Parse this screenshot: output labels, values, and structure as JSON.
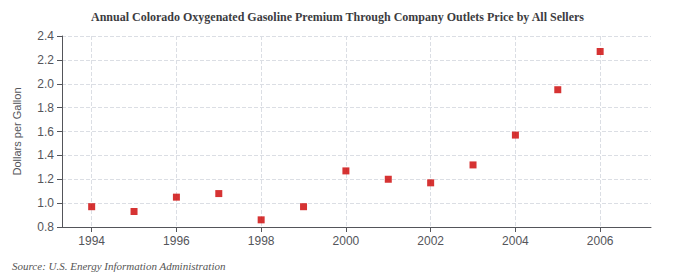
{
  "chart_data": {
    "type": "scatter",
    "title": "Annual Colorado Oxygenated Gasoline Premium Through Company Outlets Price by All Sellers",
    "ylabel": "Dollars per Gallon",
    "annotations": [
      "Source: U.S. Energy Information Administration"
    ],
    "x": [
      1994,
      1995,
      1996,
      1997,
      1998,
      1999,
      2000,
      2001,
      2002,
      2003,
      2004,
      2005,
      2006
    ],
    "values": [
      0.97,
      0.93,
      1.05,
      1.08,
      0.86,
      0.97,
      1.27,
      1.2,
      1.17,
      1.32,
      1.57,
      1.95,
      2.27
    ],
    "color": "#cc0000",
    "marker": "square",
    "xlim": [
      1993.3,
      2007.2
    ],
    "xticks": [
      1994,
      1996,
      1998,
      2000,
      2002,
      2004,
      2006
    ],
    "ylim": [
      0.8,
      2.4
    ],
    "yticks": [
      0.8,
      {
        "value": 1.0,
        "label": "1.0"
      },
      1.2,
      1.4,
      1.6,
      1.8,
      {
        "value": 2.0,
        "label": "2.0"
      },
      2.2,
      2.4
    ],
    "grid": true
  }
}
